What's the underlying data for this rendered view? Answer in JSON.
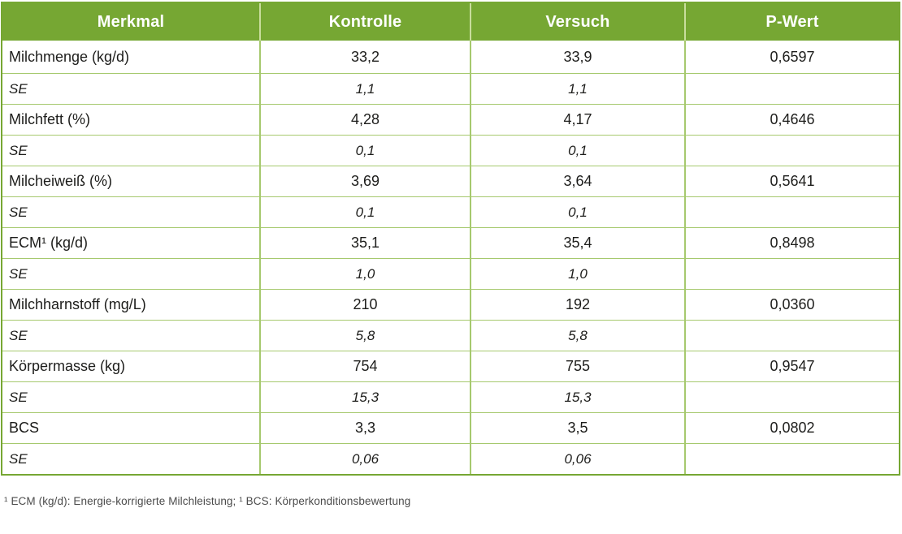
{
  "colors": {
    "header_bg": "#76a733",
    "header_text": "#ffffff",
    "header_divider": "#c9dd9d",
    "border_outer": "#76a733",
    "border_inner": "#a6c96e",
    "body_text": "#1d1d1b",
    "footnote_text": "#4b4b4b"
  },
  "table": {
    "headers": [
      "Merkmal",
      "Kontrolle",
      "Versuch",
      "P-Wert"
    ],
    "rows": [
      {
        "cells": [
          "Milchmenge (kg/d)",
          "33,2",
          "33,9",
          "0,6597"
        ],
        "italic": false
      },
      {
        "cells": [
          "SE",
          "1,1",
          "1,1",
          ""
        ],
        "italic": true
      },
      {
        "cells": [
          "Milchfett (%)",
          "4,28",
          "4,17",
          "0,4646"
        ],
        "italic": false
      },
      {
        "cells": [
          "SE",
          "0,1",
          "0,1",
          ""
        ],
        "italic": true
      },
      {
        "cells": [
          "Milcheiweiß (%)",
          "3,69",
          "3,64",
          "0,5641"
        ],
        "italic": false
      },
      {
        "cells": [
          "SE",
          "0,1",
          "0,1",
          ""
        ],
        "italic": true
      },
      {
        "cells": [
          "ECM¹ (kg/d)",
          "35,1",
          "35,4",
          "0,8498"
        ],
        "italic": false
      },
      {
        "cells": [
          "SE",
          "1,0",
          "1,0",
          ""
        ],
        "italic": true
      },
      {
        "cells": [
          "Milchharnstoff (mg/L)",
          "210",
          "192",
          "0,0360"
        ],
        "italic": false
      },
      {
        "cells": [
          "SE",
          "5,8",
          "5,8",
          ""
        ],
        "italic": true
      },
      {
        "cells": [
          "Körpermasse (kg)",
          "754",
          "755",
          "0,9547"
        ],
        "italic": false
      },
      {
        "cells": [
          "SE",
          "15,3",
          "15,3",
          ""
        ],
        "italic": true
      },
      {
        "cells": [
          "BCS",
          "3,3",
          "3,5",
          "0,0802"
        ],
        "italic": false
      },
      {
        "cells": [
          "SE",
          "0,06",
          "0,06",
          ""
        ],
        "italic": true
      }
    ]
  },
  "footnote": "¹ ECM (kg/d): Energie-korrigierte Milchleistung; ¹ BCS: Körperkonditionsbewertung"
}
